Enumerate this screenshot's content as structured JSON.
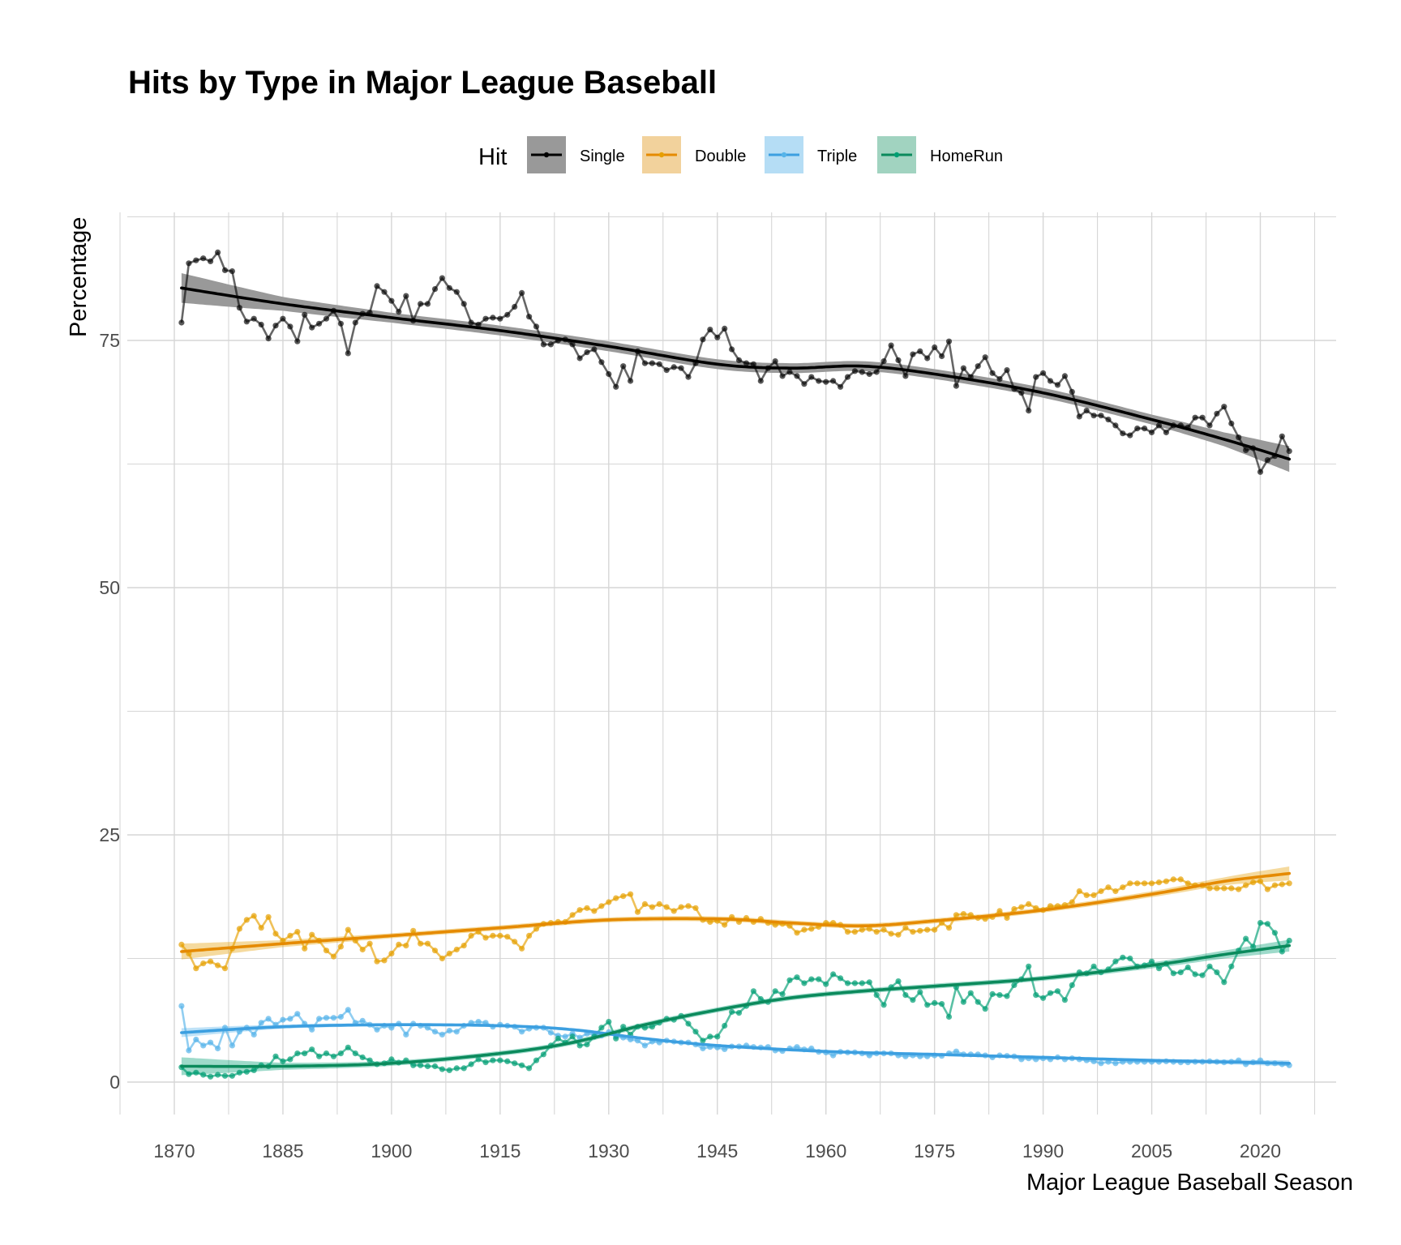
{
  "chart_data": {
    "type": "line",
    "title": "Hits by Type in Major League Baseball",
    "xlabel": "Major League Baseball Season",
    "ylabel": "Percentage",
    "xlim": [
      1862.5,
      2031
    ],
    "ylim": [
      -3,
      87.5
    ],
    "x_ticks": [
      1870,
      1885,
      1900,
      1915,
      1930,
      1945,
      1960,
      1975,
      1990,
      2005,
      2020
    ],
    "x_tick_labels": [
      "1870",
      "1885",
      "1900",
      "1915",
      "1930",
      "1945",
      "1960",
      "1975",
      "1990",
      "2005",
      "2020"
    ],
    "y_ticks": [
      0,
      25,
      50,
      75
    ],
    "y_tick_labels": [
      "0",
      "25",
      "50",
      "75"
    ],
    "grid": true,
    "legend": {
      "title": "Hit",
      "position": "top"
    },
    "x_start": 1871,
    "series": [
      {
        "name": "Single",
        "color": "#000000",
        "band_color": "#999999",
        "values": [
          76.8,
          82.8,
          83.1,
          83.3,
          83.0,
          83.9,
          82.1,
          82.0,
          78.3,
          76.9,
          77.2,
          76.6,
          75.2,
          76.5,
          77.2,
          76.4,
          74.9,
          77.6,
          76.3,
          76.7,
          77.2,
          78.0,
          76.7,
          73.7,
          76.8,
          77.7,
          77.8,
          80.5,
          79.9,
          79.0,
          77.9,
          79.5,
          77.0,
          78.7,
          78.7,
          80.2,
          81.3,
          80.3,
          79.9,
          78.7,
          76.8,
          76.6,
          77.2,
          77.3,
          77.2,
          77.6,
          78.4,
          79.8,
          77.4,
          76.4,
          74.6,
          74.6,
          75.0,
          75.1,
          74.6,
          73.2,
          73.8,
          74.1,
          72.8,
          71.6,
          70.3,
          72.4,
          70.9,
          73.9,
          72.7,
          72.7,
          72.6,
          72.0,
          72.3,
          72.2,
          71.3,
          72.7,
          75.1,
          76.1,
          75.3,
          76.2,
          74.1,
          73.0,
          72.7,
          72.6,
          70.9,
          72.2,
          72.9,
          71.4,
          71.8,
          71.4,
          70.6,
          71.3,
          70.9,
          70.8,
          70.9,
          70.3,
          71.3,
          71.9,
          71.8,
          71.6,
          71.8,
          72.9,
          74.5,
          73.0,
          71.4,
          73.6,
          73.9,
          73.2,
          74.3,
          73.4,
          74.9,
          70.4,
          72.2,
          71.3,
          72.4,
          73.3,
          71.7,
          71.1,
          72.0,
          70.1,
          69.7,
          67.9,
          71.3,
          71.7,
          70.9,
          70.5,
          71.4,
          69.8,
          67.3,
          67.9,
          67.4,
          67.4,
          67.0,
          66.4,
          65.6,
          65.4,
          66.1,
          66.1,
          65.7,
          66.4,
          65.7,
          66.4,
          66.4,
          66.2,
          67.2,
          67.2,
          66.4,
          67.6,
          68.3,
          66.6,
          65.2,
          63.9,
          64.1,
          61.7,
          62.9,
          63.3,
          65.3,
          63.8
        ],
        "smooth": {
          "x": [
            1871,
            1885,
            1900,
            1915,
            1930,
            1945,
            1955,
            1965,
            1975,
            1990,
            2005,
            2015,
            2024
          ],
          "y": [
            80.3,
            78.7,
            77.3,
            76.0,
            74.4,
            72.6,
            72.2,
            72.4,
            71.6,
            69.7,
            67.0,
            65.0,
            63.0
          ],
          "se": [
            1.5,
            0.7,
            0.5,
            0.5,
            0.5,
            0.5,
            0.5,
            0.5,
            0.5,
            0.5,
            0.5,
            0.7,
            1.3
          ]
        }
      },
      {
        "name": "Double",
        "color": "#E69F00",
        "band_color": "#E69F00",
        "values": [
          13.9,
          13.0,
          11.5,
          12.0,
          12.2,
          11.8,
          11.5,
          13.5,
          15.5,
          16.4,
          16.8,
          15.6,
          16.7,
          15.0,
          14.3,
          14.8,
          15.2,
          13.5,
          14.9,
          14.3,
          13.3,
          12.7,
          13.7,
          15.4,
          14.3,
          13.4,
          14.0,
          12.2,
          12.3,
          13.0,
          13.9,
          13.8,
          15.3,
          14.0,
          14.0,
          13.3,
          12.5,
          13.0,
          13.4,
          13.8,
          14.8,
          15.2,
          14.6,
          14.8,
          14.8,
          14.7,
          14.2,
          13.5,
          14.8,
          15.5,
          16.0,
          16.1,
          16.2,
          16.2,
          16.9,
          17.4,
          17.6,
          17.3,
          17.8,
          18.2,
          18.6,
          18.8,
          19.0,
          17.2,
          18.0,
          17.7,
          18.0,
          17.7,
          17.3,
          17.7,
          17.8,
          17.6,
          16.4,
          16.2,
          16.3,
          15.9,
          16.7,
          16.2,
          16.6,
          16.2,
          16.5,
          16.1,
          15.9,
          16.0,
          15.8,
          15.1,
          15.4,
          15.5,
          15.7,
          16.1,
          16.1,
          15.9,
          15.2,
          15.2,
          15.4,
          15.5,
          15.2,
          15.4,
          15.0,
          14.9,
          15.6,
          15.2,
          15.3,
          15.4,
          15.4,
          16.1,
          15.6,
          16.9,
          17.0,
          16.9,
          16.6,
          16.5,
          16.7,
          17.3,
          16.6,
          17.5,
          17.7,
          18.0,
          17.6,
          17.4,
          17.8,
          17.8,
          17.9,
          18.2,
          19.3,
          18.9,
          18.9,
          19.3,
          19.7,
          19.3,
          19.7,
          20.1,
          20.1,
          20.1,
          20.1,
          20.2,
          20.3,
          20.5,
          20.5,
          20.1,
          19.9,
          19.9,
          19.6,
          19.6,
          19.6,
          19.6,
          19.5,
          19.9,
          20.2,
          20.3,
          19.5,
          19.9,
          20.0,
          20.1
        ],
        "smooth": {
          "x": [
            1871,
            1885,
            1900,
            1915,
            1930,
            1945,
            1955,
            1965,
            1975,
            1990,
            2005,
            2015,
            2024
          ],
          "y": [
            13.2,
            14.0,
            14.8,
            15.6,
            16.4,
            16.5,
            16.1,
            15.8,
            16.3,
            17.4,
            19.0,
            20.3,
            21.1
          ],
          "se": [
            0.8,
            0.35,
            0.25,
            0.25,
            0.25,
            0.25,
            0.25,
            0.25,
            0.25,
            0.25,
            0.3,
            0.4,
            0.7
          ]
        }
      },
      {
        "name": "Triple",
        "color": "#56B4E9",
        "band_color": "#56B4E9",
        "values": [
          7.7,
          3.2,
          4.3,
          3.7,
          4.0,
          3.4,
          5.5,
          3.7,
          5.1,
          5.5,
          4.8,
          6.0,
          6.4,
          5.8,
          6.3,
          6.4,
          6.9,
          5.9,
          5.3,
          6.4,
          6.5,
          6.5,
          6.6,
          7.3,
          6.0,
          6.2,
          5.8,
          5.3,
          5.7,
          5.5,
          5.9,
          4.8,
          5.9,
          5.7,
          5.5,
          5.1,
          4.8,
          5.2,
          5.1,
          5.7,
          6.0,
          6.1,
          6.0,
          5.6,
          5.8,
          5.7,
          5.6,
          5.1,
          5.4,
          5.5,
          5.5,
          5.0,
          4.7,
          4.6,
          4.9,
          4.5,
          4.9,
          4.8,
          4.7,
          5.05,
          4.6,
          4.5,
          4.3,
          4.2,
          3.7,
          4.1,
          4.0,
          4.2,
          4.1,
          4.0,
          4.0,
          3.8,
          3.4,
          3.55,
          3.5,
          3.33,
          3.6,
          3.6,
          3.7,
          3.55,
          3.5,
          3.55,
          3.2,
          3.14,
          3.4,
          3.55,
          3.3,
          3.4,
          3.06,
          3.0,
          2.7,
          3.06,
          3.0,
          3.0,
          2.9,
          2.7,
          2.9,
          2.9,
          2.9,
          2.7,
          2.6,
          2.7,
          2.6,
          2.6,
          2.7,
          2.65,
          2.9,
          3.1,
          2.8,
          2.8,
          2.8,
          2.7,
          2.5,
          2.7,
          2.65,
          2.6,
          2.3,
          2.4,
          2.3,
          2.4,
          2.3,
          2.5,
          2.3,
          2.4,
          2.3,
          2.2,
          2.1,
          1.9,
          2.05,
          1.9,
          2.05,
          2.05,
          2.05,
          2.05,
          2.05,
          2.05,
          2.1,
          2.05,
          2.0,
          2.0,
          2.05,
          2.05,
          2.1,
          2.05,
          2.0,
          2.05,
          2.2,
          1.8,
          2.0,
          2.2,
          1.9,
          1.9,
          1.8,
          1.7
        ],
        "smooth": {
          "x": [
            1871,
            1885,
            1900,
            1915,
            1925,
            1935,
            1945,
            1960,
            1975,
            1990,
            2005,
            2024
          ],
          "y": [
            5.0,
            5.6,
            5.8,
            5.7,
            5.3,
            4.4,
            3.7,
            3.1,
            2.8,
            2.5,
            2.2,
            1.9
          ],
          "se": [
            0.45,
            0.2,
            0.15,
            0.15,
            0.15,
            0.15,
            0.15,
            0.15,
            0.15,
            0.15,
            0.15,
            0.3
          ]
        }
      },
      {
        "name": "HomeRun",
        "color": "#009E73",
        "band_color": "#009E73",
        "values": [
          1.5,
          0.8,
          0.96,
          0.74,
          0.55,
          0.74,
          0.63,
          0.63,
          0.96,
          1.04,
          1.2,
          1.7,
          1.6,
          2.6,
          2.1,
          2.3,
          2.9,
          2.9,
          3.3,
          2.6,
          2.9,
          2.6,
          2.9,
          3.5,
          2.9,
          2.5,
          2.2,
          1.8,
          1.9,
          2.3,
          1.97,
          2.2,
          1.7,
          1.7,
          1.6,
          1.6,
          1.3,
          1.2,
          1.4,
          1.4,
          1.8,
          2.3,
          2.0,
          2.2,
          2.2,
          2.1,
          1.9,
          1.7,
          1.4,
          2.2,
          2.8,
          3.7,
          4.4,
          4.0,
          4.6,
          3.7,
          3.8,
          4.6,
          5.5,
          6.1,
          4.4,
          5.6,
          4.8,
          5.6,
          5.5,
          5.6,
          6.0,
          6.4,
          6.3,
          6.7,
          5.9,
          5.1,
          4.2,
          4.6,
          4.6,
          5.7,
          7.1,
          7.0,
          7.7,
          9.2,
          8.4,
          8.1,
          9.2,
          8.9,
          10.3,
          10.6,
          10.0,
          10.4,
          10.4,
          9.9,
          10.9,
          10.5,
          10.0,
          10.0,
          10.0,
          10.1,
          8.8,
          7.8,
          9.6,
          10.2,
          8.8,
          8.3,
          9.1,
          7.8,
          8.0,
          7.9,
          6.6,
          9.6,
          8.1,
          9.0,
          8.1,
          7.4,
          8.9,
          8.8,
          8.7,
          9.8,
          10.4,
          11.7,
          8.8,
          8.5,
          9.0,
          9.2,
          8.3,
          9.8,
          11.1,
          11.0,
          11.7,
          11.1,
          11.4,
          12.2,
          12.6,
          12.5,
          11.7,
          11.8,
          12.2,
          11.5,
          11.97,
          11.0,
          11.1,
          11.6,
          10.9,
          10.8,
          11.7,
          11.1,
          10.1,
          11.7,
          13.3,
          14.5,
          13.7,
          16.1,
          16.0,
          15.1,
          13.2,
          14.3
        ],
        "smooth": {
          "x": [
            1871,
            1885,
            1900,
            1915,
            1925,
            1935,
            1945,
            1955,
            1965,
            1975,
            1990,
            2005,
            2015,
            2024
          ],
          "y": [
            1.6,
            1.6,
            1.9,
            2.9,
            4.0,
            5.8,
            7.3,
            8.5,
            9.2,
            9.7,
            10.5,
            11.8,
            12.9,
            13.8
          ],
          "se": [
            0.9,
            0.35,
            0.25,
            0.25,
            0.25,
            0.25,
            0.25,
            0.25,
            0.25,
            0.25,
            0.25,
            0.3,
            0.4,
            0.6
          ]
        }
      }
    ]
  }
}
